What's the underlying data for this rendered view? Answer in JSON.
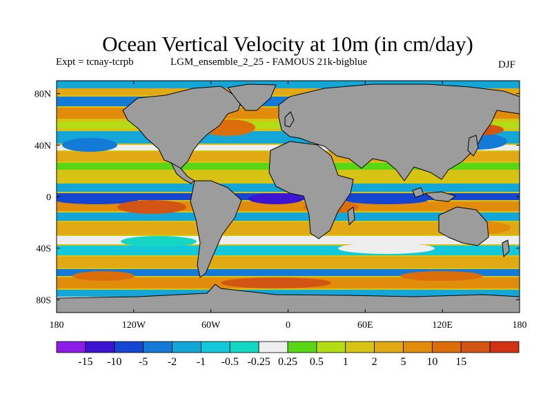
{
  "title": "Ocean Vertical Velocity at 10m (in cm/day)",
  "experiment": "Expt = tcnay-tcrpb",
  "run_label": "LGM_ensemble_2_25 - FAMOUS 21k-bigblue",
  "season": "DJF",
  "map": {
    "projection": "cylindrical-equidistant",
    "lon_range": [
      -180,
      180
    ],
    "lat_range": [
      -90,
      90
    ],
    "land_color": "#9c9c9c",
    "coastline_color": "#000000"
  },
  "axes": {
    "y_ticks": [
      {
        "lat": 80,
        "label": "80N"
      },
      {
        "lat": 40,
        "label": "40N"
      },
      {
        "lat": 0,
        "label": "0"
      },
      {
        "lat": -40,
        "label": "40S"
      },
      {
        "lat": -80,
        "label": "80S"
      }
    ],
    "x_ticks": [
      {
        "lon": -180,
        "label": "180"
      },
      {
        "lon": -120,
        "label": "120W"
      },
      {
        "lon": -60,
        "label": "60W"
      },
      {
        "lon": 0,
        "label": "0"
      },
      {
        "lon": 60,
        "label": "60E"
      },
      {
        "lon": 120,
        "label": "120E"
      },
      {
        "lon": 180,
        "label": "180"
      }
    ]
  },
  "colorbar": {
    "colors": [
      "#8c1ce6",
      "#3c14d2",
      "#1446d2",
      "#147ad7",
      "#14a6d7",
      "#14c8dc",
      "#14d7c3",
      "#eeeeee",
      "#5ad714",
      "#b4dc14",
      "#d7c314",
      "#e1aa14",
      "#e18c0a",
      "#dc6e0a",
      "#d25514",
      "#d23214"
    ],
    "labels": [
      "-15",
      "-10",
      "-5",
      "-2",
      "-1",
      "-0.5",
      "-0.25",
      "0.25",
      "0.5",
      "1",
      "2",
      "5",
      "10",
      "15"
    ]
  }
}
